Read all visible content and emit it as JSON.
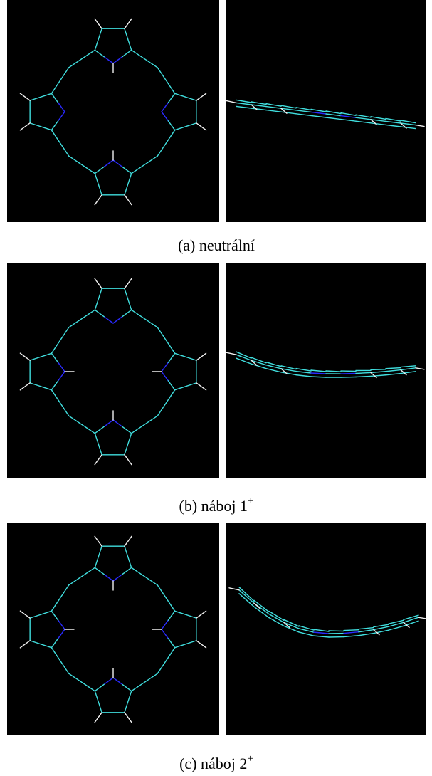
{
  "figure": {
    "panels": [
      {
        "caption": "(a) neutrální",
        "superscript": null
      },
      {
        "caption": "(b) náboj 1",
        "superscript": "+"
      },
      {
        "caption": "(c) náboj 2",
        "superscript": "+"
      }
    ]
  }
}
